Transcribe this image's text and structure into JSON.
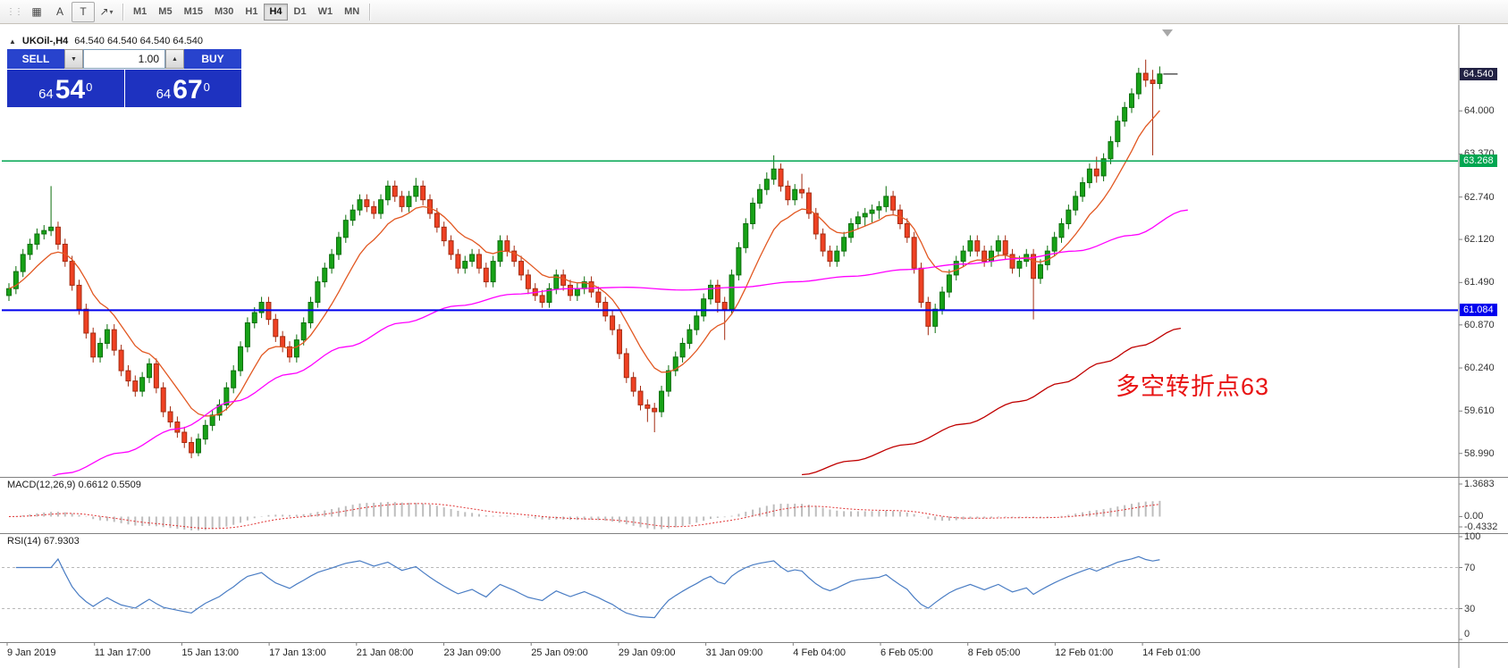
{
  "toolbar": {
    "icons": {
      "drag": "⋮⋮",
      "grid": "▦",
      "text_label": "A",
      "text_box": "T",
      "arrow": "↗",
      "caret": "▾"
    },
    "timeframes": [
      "M1",
      "M5",
      "M15",
      "M30",
      "H1",
      "H4",
      "D1",
      "W1",
      "MN"
    ],
    "active_timeframe": "H4"
  },
  "chart": {
    "header": {
      "collapse_icon": "▲",
      "title": "UKOil-,H4",
      "ohlc": "64.540 64.540 64.540 64.540"
    },
    "trade_panel": {
      "sell_label": "SELL",
      "buy_label": "BUY",
      "volume": "1.00",
      "down_icon": "▼",
      "up_icon": "▲",
      "bid_head": "64",
      "bid_pips": "54",
      "bid_sup": "0",
      "ask_head": "64",
      "ask_pips": "67",
      "ask_sup": "0"
    },
    "annotation": {
      "text": "多空转折点63",
      "color": "#e81313"
    },
    "current_price": {
      "value": 64.54,
      "label": "64.540",
      "bg": "#222244"
    },
    "hlines": [
      {
        "price": 63.268,
        "label": "63.268",
        "color": "#00a651",
        "width": 1.5
      },
      {
        "price": 61.084,
        "label": "61.084",
        "color": "#0000ee",
        "width": 2
      }
    ],
    "price_ticks": [
      "64.000",
      "63.370",
      "62.740",
      "62.120",
      "61.490",
      "60.870",
      "60.240",
      "59.610",
      "58.990"
    ]
  },
  "indicators": {
    "macd": {
      "label": "MACD(12,26,9)",
      "values": "0.6612 0.5509",
      "axis": [
        "1.3683",
        "0.00",
        "-0.4332"
      ],
      "fast": 12,
      "slow": 26,
      "signal": 9,
      "histogram_color": "#bdbdbd",
      "signal_color": "#e03232"
    },
    "rsi": {
      "label": "RSI(14)",
      "value": "67.9303",
      "axis": [
        "100",
        "70",
        "30",
        "0"
      ],
      "levels": [
        70,
        30
      ],
      "period": 14,
      "color": "#4a7dc4"
    }
  },
  "chart_data": {
    "type": "candlestick",
    "symbol": "UKOil-",
    "timeframe": "H4",
    "y_axis": {
      "min": 58.66,
      "max": 65.23
    },
    "up_color": "#17a217",
    "up_border": "#0c6e0c",
    "down_color": "#ef4123",
    "down_border": "#a32b10",
    "candles": [
      [
        61.3,
        61.48,
        61.22,
        61.4
      ],
      [
        61.4,
        61.73,
        61.32,
        61.65
      ],
      [
        61.65,
        61.98,
        61.57,
        61.9
      ],
      [
        61.9,
        62.13,
        61.82,
        62.05
      ],
      [
        62.05,
        62.28,
        61.97,
        62.2
      ],
      [
        62.2,
        62.33,
        62.12,
        62.25
      ],
      [
        62.25,
        62.9,
        62.17,
        62.3
      ],
      [
        62.3,
        62.38,
        61.97,
        62.05
      ],
      [
        62.05,
        62.13,
        61.72,
        61.8
      ],
      [
        61.8,
        61.88,
        61.37,
        61.45
      ],
      [
        61.45,
        61.53,
        61.02,
        61.1
      ],
      [
        61.1,
        61.18,
        60.67,
        60.75
      ],
      [
        60.75,
        60.83,
        60.32,
        60.4
      ],
      [
        60.4,
        60.68,
        60.32,
        60.6
      ],
      [
        60.6,
        60.88,
        60.52,
        60.8
      ],
      [
        60.8,
        60.88,
        60.42,
        60.5
      ],
      [
        60.5,
        60.58,
        60.12,
        60.2
      ],
      [
        60.2,
        60.28,
        59.97,
        60.05
      ],
      [
        60.05,
        60.13,
        59.82,
        59.9
      ],
      [
        59.9,
        60.18,
        59.82,
        60.1
      ],
      [
        60.1,
        60.38,
        60.02,
        60.3
      ],
      [
        60.3,
        60.38,
        59.87,
        59.95
      ],
      [
        59.95,
        60.03,
        59.52,
        59.6
      ],
      [
        59.6,
        59.68,
        59.37,
        59.45
      ],
      [
        59.45,
        59.53,
        59.22,
        59.3
      ],
      [
        59.3,
        59.38,
        59.07,
        59.15
      ],
      [
        59.15,
        59.23,
        58.92,
        59.0
      ],
      [
        59.0,
        59.28,
        58.95,
        59.2
      ],
      [
        59.2,
        59.48,
        59.12,
        59.4
      ],
      [
        59.4,
        59.63,
        59.32,
        59.55
      ],
      [
        59.55,
        59.78,
        59.47,
        59.7
      ],
      [
        59.7,
        60.03,
        59.62,
        59.95
      ],
      [
        59.95,
        60.28,
        59.87,
        60.2
      ],
      [
        60.2,
        60.63,
        60.12,
        60.55
      ],
      [
        60.55,
        60.98,
        60.47,
        60.9
      ],
      [
        60.9,
        61.13,
        60.82,
        61.05
      ],
      [
        61.05,
        61.28,
        60.97,
        61.2
      ],
      [
        61.2,
        61.28,
        60.87,
        60.95
      ],
      [
        60.95,
        61.03,
        60.62,
        60.7
      ],
      [
        60.7,
        60.78,
        60.47,
        60.55
      ],
      [
        60.55,
        60.63,
        60.32,
        60.4
      ],
      [
        60.4,
        60.73,
        60.32,
        60.65
      ],
      [
        60.65,
        60.98,
        60.57,
        60.9
      ],
      [
        60.9,
        61.28,
        60.82,
        61.2
      ],
      [
        61.2,
        61.58,
        61.12,
        61.5
      ],
      [
        61.5,
        61.78,
        61.42,
        61.7
      ],
      [
        61.7,
        61.98,
        61.62,
        61.9
      ],
      [
        61.9,
        62.23,
        61.82,
        62.15
      ],
      [
        62.15,
        62.48,
        62.07,
        62.4
      ],
      [
        62.4,
        62.63,
        62.32,
        62.55
      ],
      [
        62.55,
        62.78,
        62.47,
        62.7
      ],
      [
        62.7,
        62.78,
        62.52,
        62.6
      ],
      [
        62.6,
        62.68,
        62.42,
        62.5
      ],
      [
        62.5,
        62.78,
        62.42,
        62.7
      ],
      [
        62.7,
        62.98,
        62.62,
        62.9
      ],
      [
        62.9,
        62.98,
        62.67,
        62.75
      ],
      [
        62.75,
        62.83,
        62.52,
        62.6
      ],
      [
        62.6,
        62.83,
        62.52,
        62.75
      ],
      [
        62.75,
        63.02,
        62.67,
        62.9
      ],
      [
        62.9,
        62.98,
        62.62,
        62.7
      ],
      [
        62.7,
        62.78,
        62.42,
        62.5
      ],
      [
        62.5,
        62.58,
        62.22,
        62.3
      ],
      [
        62.3,
        62.38,
        62.02,
        62.1
      ],
      [
        62.1,
        62.18,
        61.82,
        61.9
      ],
      [
        61.9,
        61.98,
        61.62,
        61.7
      ],
      [
        61.7,
        61.88,
        61.62,
        61.8
      ],
      [
        61.8,
        61.98,
        61.72,
        61.9
      ],
      [
        61.9,
        61.98,
        61.62,
        61.7
      ],
      [
        61.7,
        61.78,
        61.42,
        61.5
      ],
      [
        61.5,
        61.88,
        61.42,
        61.8
      ],
      [
        61.8,
        62.18,
        61.72,
        62.1
      ],
      [
        62.1,
        62.18,
        61.87,
        61.95
      ],
      [
        61.95,
        62.03,
        61.72,
        61.8
      ],
      [
        61.8,
        61.88,
        61.52,
        61.6
      ],
      [
        61.6,
        61.68,
        61.32,
        61.4
      ],
      [
        61.4,
        61.48,
        61.22,
        61.3
      ],
      [
        61.3,
        61.38,
        61.12,
        61.2
      ],
      [
        61.2,
        61.48,
        61.12,
        61.4
      ],
      [
        61.4,
        61.68,
        61.32,
        61.6
      ],
      [
        61.6,
        61.68,
        61.37,
        61.45
      ],
      [
        61.45,
        61.53,
        61.22,
        61.3
      ],
      [
        61.3,
        61.48,
        61.22,
        61.4
      ],
      [
        61.4,
        61.58,
        61.32,
        61.5
      ],
      [
        61.5,
        61.58,
        61.27,
        61.35
      ],
      [
        61.35,
        61.43,
        61.12,
        61.2
      ],
      [
        61.2,
        61.28,
        60.92,
        61.0
      ],
      [
        61.0,
        61.08,
        60.72,
        60.8
      ],
      [
        60.8,
        60.88,
        60.37,
        60.45
      ],
      [
        60.45,
        60.53,
        60.02,
        60.1
      ],
      [
        60.1,
        60.18,
        59.82,
        59.9
      ],
      [
        59.9,
        59.98,
        59.62,
        59.7
      ],
      [
        59.7,
        59.78,
        59.45,
        59.65
      ],
      [
        59.65,
        59.73,
        59.3,
        59.6
      ],
      [
        59.6,
        59.98,
        59.52,
        59.9
      ],
      [
        59.9,
        60.28,
        59.82,
        60.2
      ],
      [
        60.2,
        60.48,
        60.12,
        60.4
      ],
      [
        60.4,
        60.68,
        60.32,
        60.6
      ],
      [
        60.6,
        60.88,
        60.52,
        60.8
      ],
      [
        60.8,
        61.08,
        60.72,
        61.0
      ],
      [
        61.0,
        61.33,
        60.92,
        61.25
      ],
      [
        61.25,
        61.53,
        61.17,
        61.45
      ],
      [
        61.45,
        61.53,
        61.05,
        61.2
      ],
      [
        61.2,
        61.28,
        60.65,
        61.1
      ],
      [
        61.1,
        61.68,
        61.02,
        61.6
      ],
      [
        61.6,
        62.08,
        61.52,
        62.0
      ],
      [
        62.0,
        62.43,
        61.92,
        62.35
      ],
      [
        62.35,
        62.73,
        62.27,
        62.65
      ],
      [
        62.65,
        62.93,
        62.57,
        62.85
      ],
      [
        62.85,
        63.1,
        62.77,
        63.0
      ],
      [
        63.0,
        63.35,
        62.92,
        63.15
      ],
      [
        63.15,
        63.23,
        62.82,
        62.9
      ],
      [
        62.9,
        62.98,
        62.62,
        62.7
      ],
      [
        62.7,
        62.93,
        62.62,
        62.85
      ],
      [
        62.85,
        63.08,
        62.72,
        62.8
      ],
      [
        62.8,
        62.88,
        62.42,
        62.5
      ],
      [
        62.5,
        62.58,
        62.12,
        62.2
      ],
      [
        62.2,
        62.28,
        61.87,
        61.95
      ],
      [
        61.95,
        62.03,
        61.72,
        61.8
      ],
      [
        61.8,
        62.03,
        61.72,
        61.95
      ],
      [
        61.95,
        62.23,
        61.87,
        62.15
      ],
      [
        62.15,
        62.43,
        62.07,
        62.35
      ],
      [
        62.35,
        62.53,
        62.27,
        62.45
      ],
      [
        62.45,
        62.58,
        62.32,
        62.5
      ],
      [
        62.5,
        62.63,
        62.37,
        62.55
      ],
      [
        62.55,
        62.68,
        62.42,
        62.6
      ],
      [
        62.6,
        62.9,
        62.52,
        62.75
      ],
      [
        62.75,
        62.83,
        62.47,
        62.55
      ],
      [
        62.55,
        62.63,
        62.27,
        62.35
      ],
      [
        62.35,
        62.43,
        62.07,
        62.15
      ],
      [
        62.15,
        62.23,
        61.62,
        61.7
      ],
      [
        61.7,
        61.78,
        61.12,
        61.2
      ],
      [
        61.2,
        61.28,
        60.72,
        60.85
      ],
      [
        60.85,
        61.18,
        60.75,
        61.1
      ],
      [
        61.1,
        61.43,
        61.02,
        61.35
      ],
      [
        61.35,
        61.68,
        61.27,
        61.6
      ],
      [
        61.6,
        61.88,
        61.52,
        61.8
      ],
      [
        61.8,
        62.03,
        61.72,
        61.95
      ],
      [
        61.95,
        62.18,
        61.87,
        62.1
      ],
      [
        62.1,
        62.18,
        61.87,
        61.95
      ],
      [
        61.95,
        62.03,
        61.72,
        61.8
      ],
      [
        61.8,
        62.03,
        61.72,
        61.95
      ],
      [
        61.95,
        62.18,
        61.87,
        62.1
      ],
      [
        62.1,
        62.18,
        61.82,
        61.9
      ],
      [
        61.9,
        61.98,
        61.62,
        61.7
      ],
      [
        61.7,
        61.88,
        61.57,
        61.8
      ],
      [
        61.8,
        61.98,
        61.72,
        61.9
      ],
      [
        61.9,
        61.98,
        60.95,
        61.55
      ],
      [
        61.55,
        61.83,
        61.47,
        61.75
      ],
      [
        61.75,
        62.03,
        61.67,
        61.95
      ],
      [
        61.95,
        62.23,
        61.87,
        62.15
      ],
      [
        62.15,
        62.43,
        62.07,
        62.35
      ],
      [
        62.35,
        62.63,
        62.27,
        62.55
      ],
      [
        62.55,
        62.83,
        62.47,
        62.75
      ],
      [
        62.75,
        63.03,
        62.67,
        62.95
      ],
      [
        62.95,
        63.23,
        62.87,
        63.15
      ],
      [
        63.15,
        63.33,
        62.95,
        63.05
      ],
      [
        63.05,
        63.38,
        62.97,
        63.3
      ],
      [
        63.3,
        63.63,
        63.22,
        63.55
      ],
      [
        63.55,
        63.93,
        63.47,
        63.85
      ],
      [
        63.85,
        64.13,
        63.77,
        64.05
      ],
      [
        64.05,
        64.33,
        63.97,
        64.25
      ],
      [
        64.25,
        64.63,
        64.17,
        64.55
      ],
      [
        64.55,
        64.75,
        64.35,
        64.45
      ],
      [
        64.45,
        64.6,
        63.35,
        64.4
      ],
      [
        64.4,
        64.65,
        64.32,
        64.54
      ]
    ],
    "x_labels": [
      "9 Jan 2019",
      "11 Jan 17:00",
      "15 Jan 13:00",
      "17 Jan 13:00",
      "21 Jan 08:00",
      "23 Jan 09:00",
      "25 Jan 09:00",
      "29 Jan 09:00",
      "31 Jan 09:00",
      "4 Feb 04:00",
      "6 Feb 05:00",
      "8 Feb 05:00",
      "12 Feb 01:00",
      "14 Feb 01:00"
    ],
    "ma_fast": {
      "type": "ema",
      "period": 10,
      "color": "#e25822"
    },
    "ma_mid": {
      "color": "#ff00ff",
      "points": [
        [
          0,
          58.35
        ],
        [
          8,
          58.7
        ],
        [
          16,
          59.0
        ],
        [
          24,
          59.35
        ],
        [
          32,
          59.75
        ],
        [
          40,
          60.15
        ],
        [
          48,
          60.55
        ],
        [
          56,
          60.9
        ],
        [
          64,
          61.15
        ],
        [
          72,
          61.32
        ],
        [
          80,
          61.4
        ],
        [
          88,
          61.42
        ],
        [
          96,
          61.38
        ],
        [
          104,
          61.42
        ],
        [
          112,
          61.5
        ],
        [
          120,
          61.58
        ],
        [
          128,
          61.68
        ],
        [
          136,
          61.76
        ],
        [
          144,
          61.84
        ],
        [
          152,
          61.95
        ],
        [
          160,
          62.18
        ],
        [
          168,
          62.55
        ]
      ]
    },
    "ma_slow": {
      "color": "#c00000",
      "points": [
        [
          113,
          58.68
        ],
        [
          120,
          58.88
        ],
        [
          128,
          59.12
        ],
        [
          136,
          59.42
        ],
        [
          144,
          59.75
        ],
        [
          150,
          60.02
        ],
        [
          156,
          60.32
        ],
        [
          161,
          60.56
        ],
        [
          167,
          60.82
        ]
      ]
    }
  }
}
